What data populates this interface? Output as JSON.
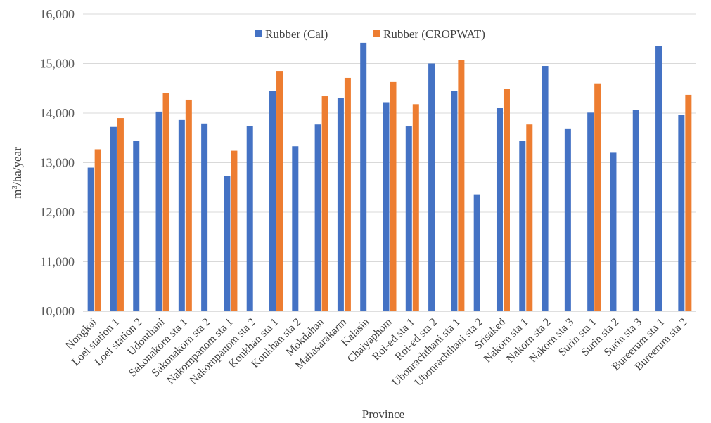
{
  "chart_data": {
    "type": "bar",
    "xlabel": "Province",
    "ylabel_base": "m",
    "ylabel_sup": "3",
    "ylabel_rest": "/ha/year",
    "ylim": [
      10000,
      16000
    ],
    "yticks": [
      "10,000",
      "11,000",
      "12,000",
      "13,000",
      "14,000",
      "15,000",
      "16,000"
    ],
    "ytick_values": [
      10000,
      11000,
      12000,
      13000,
      14000,
      15000,
      16000
    ],
    "grid": true,
    "legend_position": "top",
    "categories": [
      "Nongkai",
      "Loei station 1",
      "Loei station 2",
      "Udonthani",
      "Sakonakorn sta 1",
      "Sakonakorn sta 2",
      "Nakornpanom sta 1",
      "Nakornpanom sta 2",
      "Konkhan sta 1",
      "Konkhan sta 2",
      "Mokdahan",
      "Mahasarakarm",
      "Kalasin",
      "Chaiyaphom",
      "Roi-ed sta 1",
      "Roi-ed sta 2",
      "Ubonrachthani sta 1",
      "Ubonrachthani sta 2",
      "Srisaked",
      "Nakorn sta 1",
      "Nakorn sta 2",
      "Nakorn sta 3",
      "Surin sta 1",
      "Surin sta 2",
      "Surin sta 3",
      "Bureerum sta 1",
      "Bureerum sta 2"
    ],
    "series": [
      {
        "name": "Rubber (Cal)",
        "color": "#4472C4",
        "values": [
          12900,
          13720,
          13440,
          14030,
          13860,
          13790,
          12730,
          13740,
          14440,
          13330,
          13770,
          14310,
          15420,
          14220,
          13730,
          15000,
          14450,
          12360,
          14100,
          13440,
          14950,
          13690,
          14010,
          13200,
          14070,
          15360,
          13960
        ]
      },
      {
        "name": "Rubber (CROPWAT)",
        "color": "#ED7D31",
        "values": [
          13270,
          13900,
          null,
          14400,
          14270,
          null,
          13240,
          null,
          14850,
          null,
          14340,
          14710,
          null,
          14640,
          14180,
          null,
          15070,
          null,
          14490,
          13770,
          null,
          null,
          14600,
          null,
          null,
          null,
          14370
        ]
      }
    ]
  }
}
